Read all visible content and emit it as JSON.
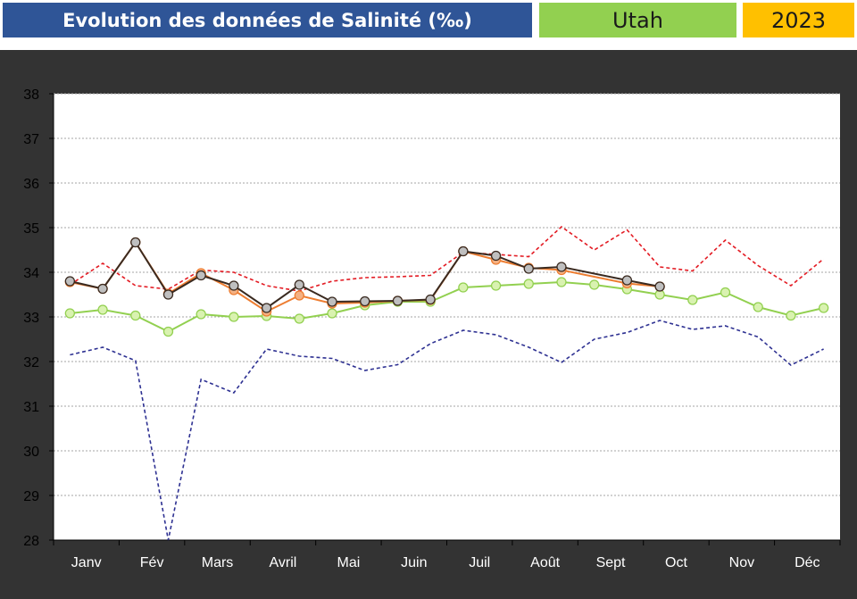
{
  "header": {
    "title": "Evolution des données de Salinité (‰)",
    "site": "Utah",
    "year": "2023"
  },
  "colors": {
    "title_bg": "#2F5597",
    "site_bg": "#92D050",
    "year_bg": "#FFC000",
    "panel_bg": "#333333",
    "plot_bg": "#FFFFFF"
  },
  "chart_data": {
    "type": "line",
    "ylim": [
      28,
      38
    ],
    "yticks": [
      28,
      29,
      30,
      31,
      32,
      33,
      34,
      35,
      36,
      37,
      38
    ],
    "months": [
      "Janv",
      "Fév",
      "Mars",
      "Avril",
      "Mai",
      "Juin",
      "Juil",
      "Août",
      "Sept",
      "Oct",
      "Nov",
      "Déc"
    ],
    "x_points_per_month": 2,
    "grid": true,
    "series": [
      {
        "color": "#2E3192",
        "style": "dashed",
        "marker": "none",
        "values": [
          32.15,
          32.32,
          32.02,
          27.9,
          31.6,
          31.3,
          32.28,
          32.12,
          32.07,
          31.8,
          31.93,
          32.4,
          32.7,
          32.6,
          32.32,
          31.98,
          32.5,
          32.65,
          32.92,
          32.72,
          32.8,
          32.55,
          31.92,
          32.28
        ]
      },
      {
        "color": "#E31B23",
        "style": "dashed",
        "marker": "none",
        "values": [
          33.72,
          34.2,
          33.7,
          33.62,
          34.05,
          34.0,
          33.7,
          33.58,
          33.8,
          33.88,
          33.9,
          33.93,
          34.45,
          34.4,
          34.35,
          35.02,
          34.5,
          34.95,
          34.12,
          34.03,
          34.72,
          34.15,
          33.7,
          34.3
        ]
      },
      {
        "color": "#92D050",
        "style": "solid",
        "marker": "circle",
        "marker_fill": "#D9F2B0",
        "values": [
          33.08,
          33.16,
          33.03,
          32.67,
          33.06,
          33.0,
          33.02,
          32.96,
          33.08,
          33.26,
          33.34,
          33.34,
          33.66,
          33.7,
          33.74,
          33.78,
          33.72,
          33.62,
          33.5,
          33.38,
          33.55,
          33.22,
          33.03,
          33.2
        ]
      },
      {
        "color": "#ED7D31",
        "style": "solid",
        "marker": "circle",
        "marker_fill": "#F4B183",
        "values": [
          33.78,
          33.63,
          34.67,
          33.52,
          33.98,
          33.6,
          33.12,
          33.48,
          33.3,
          33.32,
          33.36,
          33.38,
          34.47,
          34.28,
          34.1,
          34.05,
          null,
          33.75,
          33.68,
          null,
          null,
          null,
          null,
          null
        ]
      },
      {
        "color": "#3A2A20",
        "style": "solid",
        "marker": "circle",
        "marker_fill": "#BFBFBF",
        "values": [
          33.8,
          33.63,
          34.67,
          33.5,
          33.93,
          33.7,
          33.2,
          33.72,
          33.34,
          33.35,
          33.36,
          33.39,
          34.47,
          34.37,
          34.08,
          34.12,
          null,
          33.82,
          33.68,
          null,
          null,
          null,
          null,
          null
        ]
      }
    ]
  }
}
